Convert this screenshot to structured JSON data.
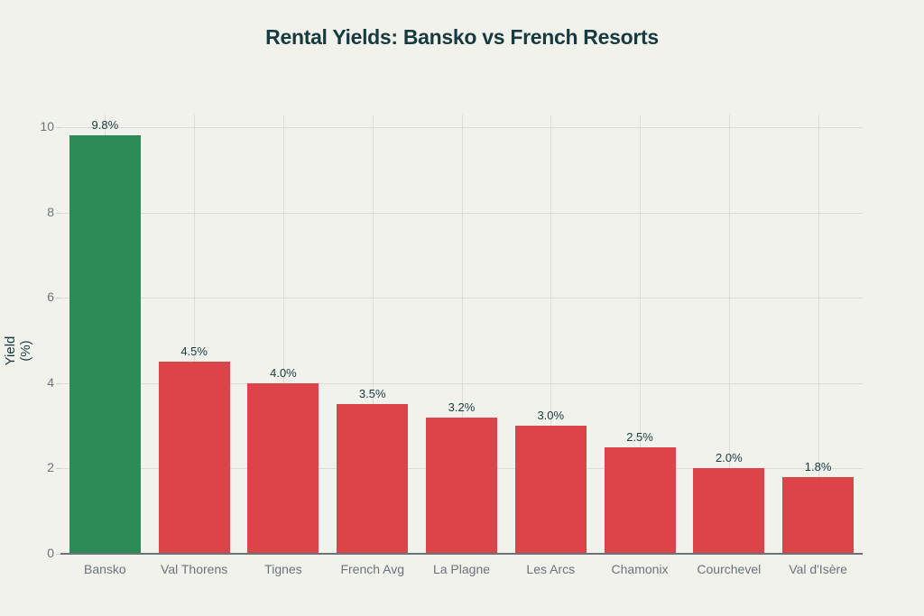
{
  "chart_data": {
    "type": "bar",
    "title": "Rental Yields: Bansko vs French Resorts",
    "xlabel": "",
    "ylabel": "Yield (%)",
    "ylim": [
      0,
      10
    ],
    "yticks": [
      "0",
      "2",
      "4",
      "6",
      "8",
      "10"
    ],
    "grid": true,
    "legend": null,
    "categories": [
      "Bansko",
      "Val Thorens",
      "Tignes",
      "French Avg",
      "La Plagne",
      "Les Arcs",
      "Chamonix",
      "Courchevel",
      "Val d'Isère"
    ],
    "values": [
      9.8,
      4.5,
      4.0,
      3.5,
      3.2,
      3.0,
      2.5,
      2.0,
      1.8
    ],
    "data_labels": [
      "9.8%",
      "4.5%",
      "4.0%",
      "3.5%",
      "3.2%",
      "3.0%",
      "2.5%",
      "2.0%",
      "1.8%"
    ],
    "colors": [
      "#2e8b57",
      "#db4549",
      "#db4549",
      "#db4549",
      "#db4549",
      "#db4549",
      "#db4549",
      "#db4549",
      "#db4549"
    ]
  }
}
